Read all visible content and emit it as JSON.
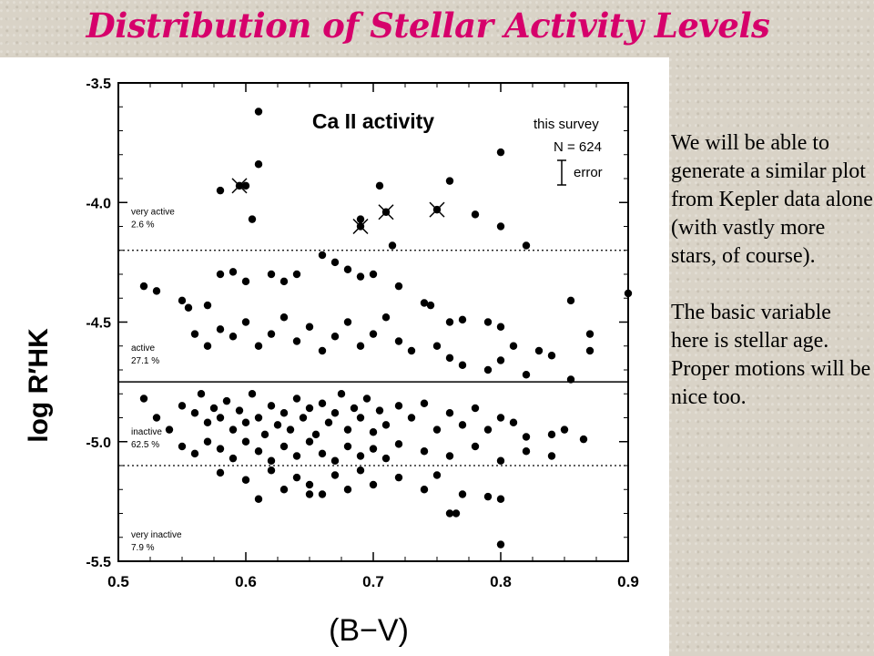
{
  "slide": {
    "title": "Distribution of Stellar Activity Levels",
    "paragraphs": [
      "We will be able to generate a similar plot from Kepler data alone (with vastly more stars, of course).",
      "The basic variable here is stellar age. Proper motions will be nice too."
    ]
  },
  "chart_data": {
    "type": "scatter",
    "title": "Ca II activity",
    "xlabel": "(B−V)",
    "ylabel": "log R′HK",
    "xlim": [
      0.5,
      0.9
    ],
    "ylim": [
      -5.5,
      -3.5
    ],
    "xticks": [
      "0.5",
      "0.6",
      "0.7",
      "0.8",
      "0.9"
    ],
    "yticks": [
      "-3.5",
      "-4.0",
      "-4.5",
      "-5.0",
      "-5.5"
    ],
    "legend": {
      "line1": "this survey",
      "line2": "N = 624",
      "line3": "error"
    },
    "boundaries": [
      {
        "y": -4.2,
        "style": "dotted"
      },
      {
        "y": -4.75,
        "style": "solid"
      },
      {
        "y": -5.1,
        "style": "dotted"
      }
    ],
    "region_labels": [
      {
        "name": "very active",
        "percent": "2.6 %"
      },
      {
        "name": "active",
        "percent": "27.1 %"
      },
      {
        "name": "inactive",
        "percent": "62.5 %"
      },
      {
        "name": "very inactive",
        "percent": "7.9 %"
      }
    ],
    "crossed_points": [
      [
        0.595,
        -3.93
      ],
      [
        0.69,
        -4.1
      ],
      [
        0.71,
        -4.04
      ],
      [
        0.75,
        -4.03
      ]
    ],
    "points": [
      [
        0.61,
        -3.62
      ],
      [
        0.61,
        -3.84
      ],
      [
        0.58,
        -3.95
      ],
      [
        0.6,
        -3.93
      ],
      [
        0.605,
        -4.07
      ],
      [
        0.69,
        -4.07
      ],
      [
        0.705,
        -3.93
      ],
      [
        0.715,
        -4.18
      ],
      [
        0.76,
        -3.91
      ],
      [
        0.78,
        -4.05
      ],
      [
        0.8,
        -3.79
      ],
      [
        0.8,
        -4.1
      ],
      [
        0.82,
        -4.18
      ],
      [
        0.9,
        -4.38
      ],
      [
        0.52,
        -4.35
      ],
      [
        0.53,
        -4.37
      ],
      [
        0.55,
        -4.41
      ],
      [
        0.555,
        -4.44
      ],
      [
        0.57,
        -4.43
      ],
      [
        0.58,
        -4.3
      ],
      [
        0.59,
        -4.29
      ],
      [
        0.6,
        -4.33
      ],
      [
        0.62,
        -4.3
      ],
      [
        0.63,
        -4.33
      ],
      [
        0.64,
        -4.3
      ],
      [
        0.66,
        -4.22
      ],
      [
        0.67,
        -4.25
      ],
      [
        0.68,
        -4.28
      ],
      [
        0.69,
        -4.31
      ],
      [
        0.7,
        -4.3
      ],
      [
        0.72,
        -4.35
      ],
      [
        0.74,
        -4.42
      ],
      [
        0.745,
        -4.43
      ],
      [
        0.76,
        -4.5
      ],
      [
        0.77,
        -4.49
      ],
      [
        0.79,
        -4.5
      ],
      [
        0.8,
        -4.52
      ],
      [
        0.81,
        -4.6
      ],
      [
        0.83,
        -4.62
      ],
      [
        0.84,
        -4.64
      ],
      [
        0.855,
        -4.41
      ],
      [
        0.87,
        -4.55
      ],
      [
        0.87,
        -4.62
      ],
      [
        0.56,
        -4.55
      ],
      [
        0.57,
        -4.6
      ],
      [
        0.58,
        -4.53
      ],
      [
        0.59,
        -4.56
      ],
      [
        0.6,
        -4.5
      ],
      [
        0.61,
        -4.6
      ],
      [
        0.62,
        -4.55
      ],
      [
        0.63,
        -4.48
      ],
      [
        0.64,
        -4.58
      ],
      [
        0.65,
        -4.52
      ],
      [
        0.66,
        -4.62
      ],
      [
        0.67,
        -4.56
      ],
      [
        0.68,
        -4.5
      ],
      [
        0.69,
        -4.6
      ],
      [
        0.7,
        -4.55
      ],
      [
        0.71,
        -4.48
      ],
      [
        0.72,
        -4.58
      ],
      [
        0.73,
        -4.62
      ],
      [
        0.75,
        -4.6
      ],
      [
        0.76,
        -4.65
      ],
      [
        0.77,
        -4.68
      ],
      [
        0.79,
        -4.7
      ],
      [
        0.8,
        -4.66
      ],
      [
        0.82,
        -4.72
      ],
      [
        0.855,
        -4.74
      ],
      [
        0.52,
        -4.82
      ],
      [
        0.53,
        -4.9
      ],
      [
        0.54,
        -4.95
      ],
      [
        0.55,
        -4.85
      ],
      [
        0.56,
        -4.88
      ],
      [
        0.565,
        -4.8
      ],
      [
        0.57,
        -4.92
      ],
      [
        0.575,
        -4.86
      ],
      [
        0.58,
        -4.9
      ],
      [
        0.585,
        -4.83
      ],
      [
        0.59,
        -4.95
      ],
      [
        0.595,
        -4.87
      ],
      [
        0.6,
        -4.92
      ],
      [
        0.605,
        -4.8
      ],
      [
        0.61,
        -4.9
      ],
      [
        0.615,
        -4.97
      ],
      [
        0.62,
        -4.85
      ],
      [
        0.625,
        -4.93
      ],
      [
        0.63,
        -4.88
      ],
      [
        0.635,
        -4.95
      ],
      [
        0.64,
        -4.82
      ],
      [
        0.645,
        -4.9
      ],
      [
        0.65,
        -4.86
      ],
      [
        0.655,
        -4.97
      ],
      [
        0.66,
        -4.84
      ],
      [
        0.665,
        -4.92
      ],
      [
        0.67,
        -4.88
      ],
      [
        0.675,
        -4.8
      ],
      [
        0.68,
        -4.95
      ],
      [
        0.685,
        -4.86
      ],
      [
        0.69,
        -4.9
      ],
      [
        0.695,
        -4.82
      ],
      [
        0.7,
        -4.96
      ],
      [
        0.705,
        -4.87
      ],
      [
        0.71,
        -4.93
      ],
      [
        0.72,
        -4.85
      ],
      [
        0.73,
        -4.9
      ],
      [
        0.74,
        -4.84
      ],
      [
        0.75,
        -4.95
      ],
      [
        0.76,
        -4.88
      ],
      [
        0.77,
        -4.93
      ],
      [
        0.78,
        -4.86
      ],
      [
        0.79,
        -4.95
      ],
      [
        0.8,
        -4.9
      ],
      [
        0.81,
        -4.92
      ],
      [
        0.82,
        -4.98
      ],
      [
        0.84,
        -4.97
      ],
      [
        0.85,
        -4.95
      ],
      [
        0.865,
        -4.99
      ],
      [
        0.55,
        -5.02
      ],
      [
        0.56,
        -5.05
      ],
      [
        0.57,
        -5.0
      ],
      [
        0.58,
        -5.03
      ],
      [
        0.59,
        -5.07
      ],
      [
        0.6,
        -5.0
      ],
      [
        0.61,
        -5.04
      ],
      [
        0.62,
        -5.08
      ],
      [
        0.63,
        -5.02
      ],
      [
        0.64,
        -5.06
      ],
      [
        0.65,
        -5.0
      ],
      [
        0.66,
        -5.05
      ],
      [
        0.67,
        -5.08
      ],
      [
        0.68,
        -5.02
      ],
      [
        0.69,
        -5.06
      ],
      [
        0.7,
        -5.03
      ],
      [
        0.71,
        -5.07
      ],
      [
        0.72,
        -5.01
      ],
      [
        0.74,
        -5.04
      ],
      [
        0.76,
        -5.06
      ],
      [
        0.78,
        -5.02
      ],
      [
        0.8,
        -5.08
      ],
      [
        0.82,
        -5.04
      ],
      [
        0.84,
        -5.06
      ],
      [
        0.58,
        -5.13
      ],
      [
        0.6,
        -5.16
      ],
      [
        0.62,
        -5.12
      ],
      [
        0.63,
        -5.2
      ],
      [
        0.64,
        -5.15
      ],
      [
        0.65,
        -5.18
      ],
      [
        0.66,
        -5.22
      ],
      [
        0.67,
        -5.14
      ],
      [
        0.68,
        -5.2
      ],
      [
        0.69,
        -5.12
      ],
      [
        0.7,
        -5.18
      ],
      [
        0.72,
        -5.15
      ],
      [
        0.74,
        -5.2
      ],
      [
        0.75,
        -5.14
      ],
      [
        0.77,
        -5.22
      ],
      [
        0.79,
        -5.23
      ],
      [
        0.8,
        -5.24
      ],
      [
        0.61,
        -5.24
      ],
      [
        0.65,
        -5.22
      ],
      [
        0.76,
        -5.3
      ],
      [
        0.765,
        -5.3
      ],
      [
        0.8,
        -5.43
      ]
    ]
  }
}
